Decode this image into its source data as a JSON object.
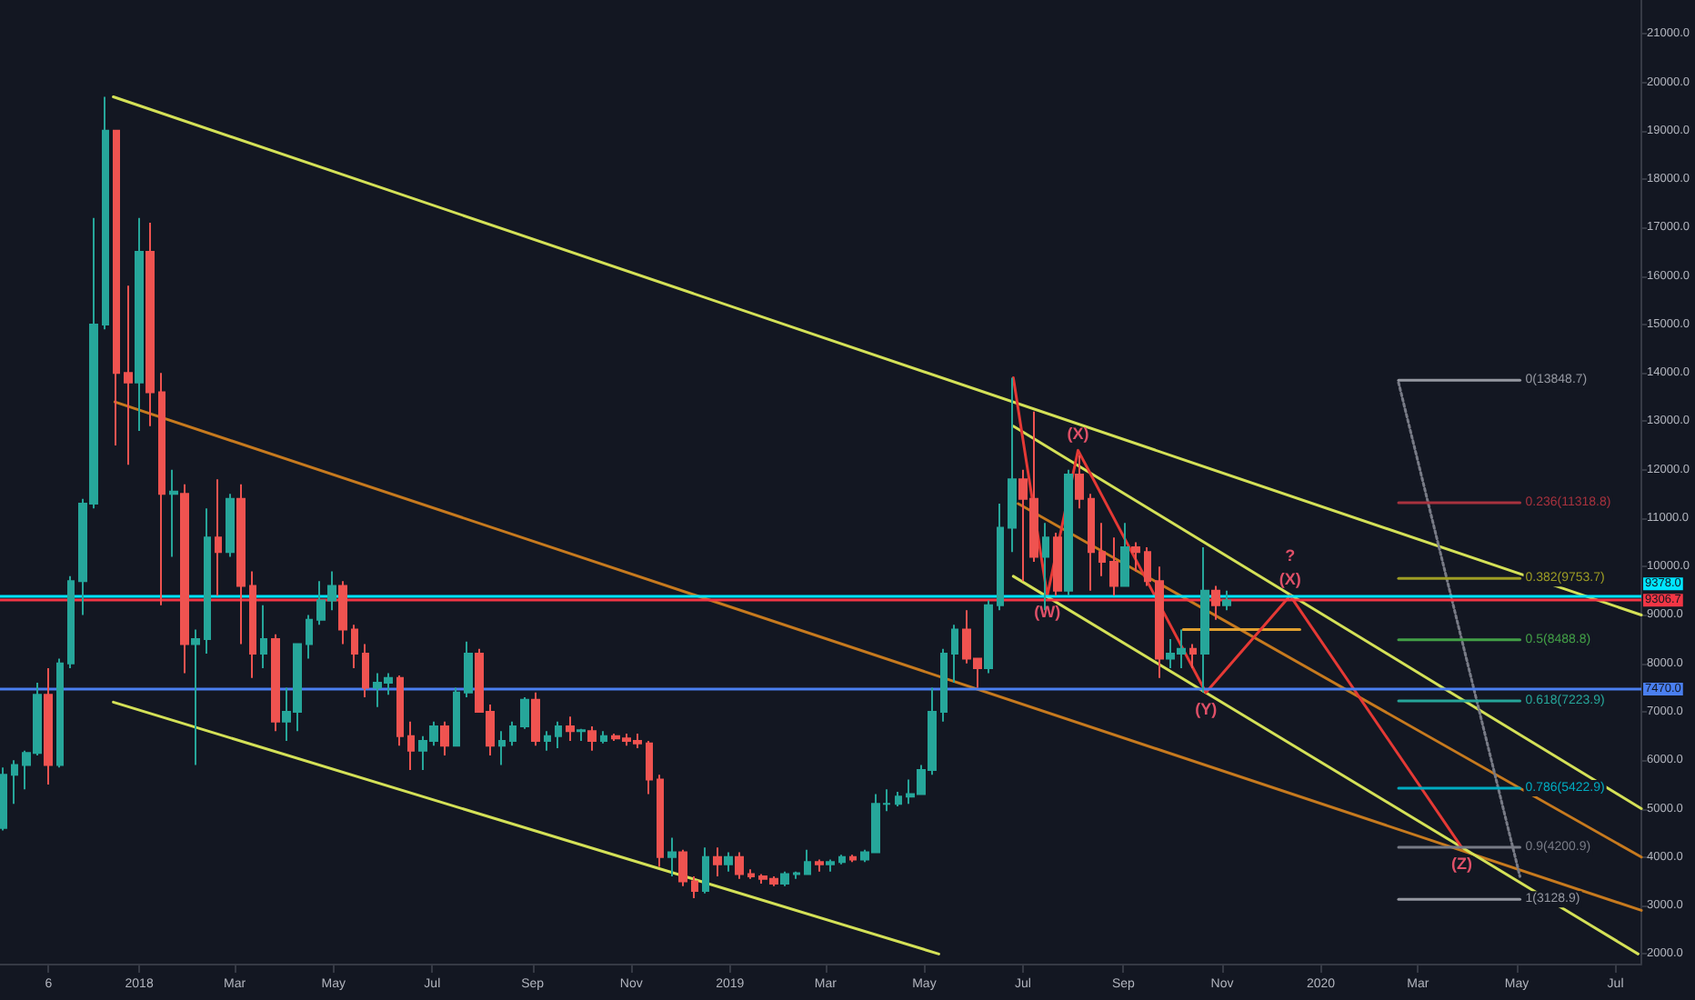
{
  "chart_data": {
    "type": "candlestick",
    "xlim": [
      "2017-10-07",
      "2020-07-17"
    ],
    "ylim": [
      1800,
      21700
    ],
    "xticks": [
      {
        "value": "2017-11-06",
        "label": "6"
      },
      {
        "value": "2018-01-01",
        "label": "2018"
      },
      {
        "value": "2018-03-01",
        "label": "Mar"
      },
      {
        "value": "2018-05-01",
        "label": "May"
      },
      {
        "value": "2018-07-01",
        "label": "Jul"
      },
      {
        "value": "2018-09-01",
        "label": "Sep"
      },
      {
        "value": "2018-11-01",
        "label": "Nov"
      },
      {
        "value": "2019-01-01",
        "label": "2019"
      },
      {
        "value": "2019-03-01",
        "label": "Mar"
      },
      {
        "value": "2019-05-01",
        "label": "May"
      },
      {
        "value": "2019-07-01",
        "label": "Jul"
      },
      {
        "value": "2019-09-01",
        "label": "Sep"
      },
      {
        "value": "2019-11-01",
        "label": "Nov"
      },
      {
        "value": "2020-01-01",
        "label": "2020"
      },
      {
        "value": "2020-03-01",
        "label": "Mar"
      },
      {
        "value": "2020-05-01",
        "label": "May"
      },
      {
        "value": "2020-07-01",
        "label": "Jul"
      }
    ],
    "yticks": [
      {
        "value": 2000,
        "label": "2000.0"
      },
      {
        "value": 3000,
        "label": "3000.0"
      },
      {
        "value": 4000,
        "label": "4000.0"
      },
      {
        "value": 5000,
        "label": "5000.0"
      },
      {
        "value": 6000,
        "label": "6000.0"
      },
      {
        "value": 7000,
        "label": "7000.0"
      },
      {
        "value": 8000,
        "label": "8000.0"
      },
      {
        "value": 9000,
        "label": "9000.0"
      },
      {
        "value": 10000,
        "label": "10000.0"
      },
      {
        "value": 11000,
        "label": "11000.0"
      },
      {
        "value": 12000,
        "label": "12000.0"
      },
      {
        "value": 13000,
        "label": "13000.0"
      },
      {
        "value": 14000,
        "label": "14000.0"
      },
      {
        "value": 15000,
        "label": "15000.0"
      },
      {
        "value": 16000,
        "label": "16000.0"
      },
      {
        "value": 17000,
        "label": "17000.0"
      },
      {
        "value": 18000,
        "label": "18000.0"
      },
      {
        "value": 19000,
        "label": "19000.0"
      },
      {
        "value": 20000,
        "label": "20000.0"
      },
      {
        "value": 21000,
        "label": "21000.0"
      }
    ],
    "grid": false,
    "legend": false,
    "marker": "none",
    "ref_lines": [
      {
        "axis": "y",
        "value": 9378,
        "label": "9378.0",
        "color": "#00e5ff"
      },
      {
        "axis": "y",
        "value": 9306.7,
        "label": "9306.7",
        "color": "#f23645"
      },
      {
        "axis": "y",
        "value": 7470,
        "label": "7470.0",
        "color": "#4a7ff0"
      }
    ],
    "annotations": [
      {
        "text": "(W)",
        "x": "2019-07-16",
        "y": 9400
      },
      {
        "text": "(X)",
        "x": "2019-08-04",
        "y": 12400
      },
      {
        "text": "(Y)",
        "x": "2019-10-22",
        "y": 7400
      },
      {
        "text": "(X)",
        "x": "2019-12-13",
        "y": 9400
      },
      {
        "text": "?",
        "x": "2019-12-13",
        "y": 9400
      },
      {
        "text": "(Z)",
        "x": "2020-03-28",
        "y": 4200
      }
    ],
    "series": [
      {
        "x": [
          "2017-10-09",
          "2017-10-16",
          "2017-10-23",
          "2017-10-30",
          "2017-11-06",
          "2017-11-13",
          "2017-11-20",
          "2017-11-27",
          "2017-12-04",
          "2017-12-11",
          "2017-12-18",
          "2017-12-25",
          "2018-01-01",
          "2018-01-08",
          "2018-01-15",
          "2018-01-22",
          "2018-01-29",
          "2018-02-05",
          "2018-02-12",
          "2018-02-19",
          "2018-02-26",
          "2018-03-05",
          "2018-03-12",
          "2018-03-19",
          "2018-03-26",
          "2018-04-02",
          "2018-04-09",
          "2018-04-16",
          "2018-04-23",
          "2018-04-30",
          "2018-05-07",
          "2018-05-14",
          "2018-05-21",
          "2018-05-28",
          "2018-06-04",
          "2018-06-11",
          "2018-06-18",
          "2018-06-25",
          "2018-07-02",
          "2018-07-09",
          "2018-07-16",
          "2018-07-23",
          "2018-07-30",
          "2018-08-06",
          "2018-08-13",
          "2018-08-20",
          "2018-08-27",
          "2018-09-03",
          "2018-09-10",
          "2018-09-17",
          "2018-09-24",
          "2018-10-01",
          "2018-10-08",
          "2018-10-15",
          "2018-10-22",
          "2018-10-29",
          "2018-11-05",
          "2018-11-12",
          "2018-11-19",
          "2018-11-26",
          "2018-12-03",
          "2018-12-10",
          "2018-12-17",
          "2018-12-24",
          "2018-12-31",
          "2019-01-07",
          "2019-01-14",
          "2019-01-21",
          "2019-01-28",
          "2019-02-04",
          "2019-02-11",
          "2019-02-18",
          "2019-02-25",
          "2019-03-04",
          "2019-03-11",
          "2019-03-18",
          "2019-03-25",
          "2019-04-01",
          "2019-04-08",
          "2019-04-15",
          "2019-04-22",
          "2019-04-29",
          "2019-05-06",
          "2019-05-13",
          "2019-05-20",
          "2019-05-27",
          "2019-06-03",
          "2019-06-10",
          "2019-06-17",
          "2019-06-24",
          "2019-07-01",
          "2019-07-08",
          "2019-07-15",
          "2019-07-22",
          "2019-07-29",
          "2019-08-05",
          "2019-08-12",
          "2019-08-19",
          "2019-08-26",
          "2019-09-02",
          "2019-09-09",
          "2019-09-16",
          "2019-09-23",
          "2019-09-30",
          "2019-10-07",
          "2019-10-14",
          "2019-10-21",
          "2019-10-28",
          "2019-11-04"
        ],
        "ohlc": [
          [
            4600,
            5850,
            4550,
            5700
          ],
          [
            5700,
            6000,
            5100,
            5900
          ],
          [
            5900,
            6200,
            5400,
            6150
          ],
          [
            6150,
            7600,
            6100,
            7350
          ],
          [
            7350,
            7900,
            5500,
            5900
          ],
          [
            5900,
            8100,
            5850,
            8000
          ],
          [
            8000,
            9800,
            7900,
            9700
          ],
          [
            9700,
            11400,
            9000,
            11300
          ],
          [
            11300,
            17200,
            11200,
            15000
          ],
          [
            15000,
            19700,
            14900,
            19000
          ],
          [
            19000,
            19000,
            12500,
            14000
          ],
          [
            14000,
            15800,
            12100,
            13800
          ],
          [
            13800,
            17200,
            12800,
            16500
          ],
          [
            16500,
            17100,
            12900,
            13600
          ],
          [
            13600,
            14000,
            9200,
            11500
          ],
          [
            11500,
            12000,
            10200,
            11550
          ],
          [
            11500,
            11700,
            7800,
            8400
          ],
          [
            8400,
            8700,
            5900,
            8500
          ],
          [
            8500,
            11200,
            8200,
            10600
          ],
          [
            10600,
            11800,
            9400,
            10300
          ],
          [
            10300,
            11500,
            10200,
            11400
          ],
          [
            11400,
            11700,
            8400,
            9600
          ],
          [
            9600,
            9900,
            7700,
            8200
          ],
          [
            8200,
            9200,
            7900,
            8500
          ],
          [
            8500,
            8600,
            6600,
            6800
          ],
          [
            6800,
            7500,
            6400,
            7000
          ],
          [
            7000,
            8400,
            6600,
            8400
          ],
          [
            8400,
            9000,
            8100,
            8900
          ],
          [
            8900,
            9700,
            8800,
            9300
          ],
          [
            9300,
            9900,
            9100,
            9600
          ],
          [
            9600,
            9700,
            8400,
            8700
          ],
          [
            8700,
            8800,
            7900,
            8200
          ],
          [
            8200,
            8400,
            7300,
            7500
          ],
          [
            7500,
            7800,
            7100,
            7600
          ],
          [
            7600,
            7800,
            7350,
            7700
          ],
          [
            7700,
            7750,
            6300,
            6500
          ],
          [
            6500,
            6800,
            5800,
            6200
          ],
          [
            6200,
            6500,
            5800,
            6400
          ],
          [
            6400,
            6800,
            6300,
            6700
          ],
          [
            6700,
            6800,
            6100,
            6300
          ],
          [
            6300,
            7500,
            6300,
            7400
          ],
          [
            7400,
            8450,
            7300,
            8200
          ],
          [
            8200,
            8300,
            7000,
            7000
          ],
          [
            7000,
            7150,
            6100,
            6300
          ],
          [
            6300,
            6600,
            5900,
            6400
          ],
          [
            6400,
            6800,
            6300,
            6700
          ],
          [
            6700,
            7300,
            6650,
            7250
          ],
          [
            7250,
            7400,
            6300,
            6400
          ],
          [
            6400,
            6600,
            6200,
            6500
          ],
          [
            6500,
            6800,
            6250,
            6700
          ],
          [
            6700,
            6900,
            6400,
            6600
          ],
          [
            6600,
            6650,
            6400,
            6620
          ],
          [
            6600,
            6700,
            6200,
            6400
          ],
          [
            6400,
            6600,
            6350,
            6500
          ],
          [
            6500,
            6550,
            6400,
            6450
          ],
          [
            6450,
            6550,
            6300,
            6400
          ],
          [
            6400,
            6550,
            6250,
            6350
          ],
          [
            6350,
            6400,
            5300,
            5600
          ],
          [
            5600,
            5700,
            3800,
            4000
          ],
          [
            4000,
            4400,
            3600,
            4100
          ],
          [
            4100,
            4150,
            3400,
            3500
          ],
          [
            3500,
            3600,
            3150,
            3300
          ],
          [
            3300,
            4200,
            3250,
            4000
          ],
          [
            4000,
            4200,
            3600,
            3850
          ],
          [
            3850,
            4100,
            3700,
            4000
          ],
          [
            4000,
            4100,
            3550,
            3650
          ],
          [
            3650,
            3750,
            3550,
            3600
          ],
          [
            3600,
            3650,
            3450,
            3550
          ],
          [
            3550,
            3600,
            3400,
            3450
          ],
          [
            3450,
            3700,
            3400,
            3650
          ],
          [
            3650,
            3700,
            3550,
            3670
          ],
          [
            3650,
            4150,
            3650,
            3900
          ],
          [
            3900,
            3950,
            3700,
            3850
          ],
          [
            3850,
            3950,
            3700,
            3900
          ],
          [
            3900,
            4050,
            3850,
            4000
          ],
          [
            4000,
            4050,
            3900,
            3950
          ],
          [
            3950,
            4150,
            3900,
            4100
          ],
          [
            4100,
            5300,
            4100,
            5100
          ],
          [
            5100,
            5400,
            4950,
            5100
          ],
          [
            5100,
            5350,
            5050,
            5250
          ],
          [
            5250,
            5600,
            5100,
            5300
          ],
          [
            5300,
            5900,
            5300,
            5800
          ],
          [
            5800,
            7500,
            5700,
            7000
          ],
          [
            7000,
            8300,
            6800,
            8200
          ],
          [
            8200,
            8800,
            7600,
            8700
          ],
          [
            8700,
            9100,
            8000,
            8100
          ],
          [
            8100,
            8100,
            7500,
            7900
          ],
          [
            7900,
            9300,
            7800,
            9200
          ],
          [
            9200,
            11300,
            9100,
            10800
          ],
          [
            10800,
            13900,
            10300,
            11800
          ],
          [
            11800,
            12000,
            9700,
            11400
          ],
          [
            11400,
            13200,
            10100,
            10200
          ],
          [
            10200,
            10900,
            9100,
            10600
          ],
          [
            10600,
            10700,
            9400,
            9500
          ],
          [
            9500,
            12000,
            9400,
            11900
          ],
          [
            11900,
            12300,
            11200,
            11400
          ],
          [
            11400,
            11500,
            9500,
            10300
          ],
          [
            10300,
            10900,
            9800,
            10100
          ],
          [
            10100,
            10600,
            9400,
            9600
          ],
          [
            9600,
            10900,
            9600,
            10400
          ],
          [
            10400,
            10500,
            9900,
            10300
          ],
          [
            10300,
            10400,
            9600,
            9700
          ],
          [
            9700,
            10000,
            7700,
            8100
          ],
          [
            8100,
            8500,
            7900,
            8200
          ],
          [
            8200,
            8700,
            7900,
            8300
          ],
          [
            8300,
            8400,
            7900,
            8200
          ],
          [
            8200,
            10400,
            7400,
            9500
          ],
          [
            9500,
            9600,
            8900,
            9200
          ],
          [
            9200,
            9500,
            9100,
            9300
          ]
        ],
        "colors": [
          "#26a69a",
          "#26a69a",
          "#26a69a",
          "#26a69a",
          "#ef5350",
          "#26a69a",
          "#26a69a",
          "#26a69a",
          "#26a69a",
          "#26a69a",
          "#ef5350",
          "#ef5350",
          "#26a69a",
          "#ef5350",
          "#ef5350",
          "#26a69a",
          "#ef5350",
          "#26a69a",
          "#26a69a",
          "#ef5350",
          "#26a69a",
          "#ef5350",
          "#ef5350",
          "#26a69a",
          "#ef5350",
          "#26a69a",
          "#26a69a",
          "#26a69a",
          "#26a69a",
          "#26a69a",
          "#ef5350",
          "#ef5350",
          "#ef5350",
          "#26a69a",
          "#26a69a",
          "#ef5350",
          "#ef5350",
          "#26a69a",
          "#26a69a",
          "#ef5350",
          "#26a69a",
          "#26a69a",
          "#ef5350",
          "#ef5350",
          "#26a69a",
          "#26a69a",
          "#26a69a",
          "#ef5350",
          "#26a69a",
          "#26a69a",
          "#ef5350",
          "#26a69a",
          "#ef5350",
          "#26a69a",
          "#ef5350",
          "#ef5350",
          "#ef5350",
          "#ef5350",
          "#ef5350",
          "#26a69a",
          "#ef5350",
          "#ef5350",
          "#26a69a",
          "#ef5350",
          "#26a69a",
          "#ef5350",
          "#ef5350",
          "#ef5350",
          "#ef5350",
          "#26a69a",
          "#26a69a",
          "#26a69a",
          "#ef5350",
          "#26a69a",
          "#26a69a",
          "#ef5350",
          "#26a69a",
          "#26a69a",
          "#26a69a",
          "#26a69a",
          "#26a69a",
          "#26a69a",
          "#26a69a",
          "#26a69a",
          "#26a69a",
          "#ef5350",
          "#ef5350",
          "#26a69a",
          "#26a69a",
          "#26a69a",
          "#ef5350",
          "#ef5350",
          "#26a69a",
          "#ef5350",
          "#26a69a",
          "#ef5350",
          "#ef5350",
          "#ef5350",
          "#ef5350",
          "#26a69a",
          "#ef5350",
          "#ef5350",
          "#ef5350",
          "#26a69a",
          "#26a69a",
          "#ef5350",
          "#26a69a",
          "#ef5350",
          "#26a69a"
        ]
      },
      {
        "type": "line",
        "x": [
          "2017-12-16",
          "2020-07-17"
        ],
        "values": [
          19700,
          9000
        ],
        "color": "#d4e157",
        "line_style": "solid"
      },
      {
        "type": "line",
        "x": [
          "2017-12-16",
          "2019-05-10"
        ],
        "values": [
          7200,
          2000
        ],
        "color": "#d4e157",
        "line_style": "solid"
      },
      {
        "type": "line",
        "x": [
          "2017-12-17",
          "2020-07-17"
        ],
        "values": [
          13400,
          2900
        ],
        "color": "#c77a1e",
        "line_style": "solid"
      },
      {
        "type": "line",
        "x": [
          "2019-06-28",
          "2020-07-17"
        ],
        "values": [
          11300,
          4000
        ],
        "color": "#c77a1e",
        "line_style": "solid"
      },
      {
        "type": "line",
        "x": [
          "2019-06-25",
          "2020-07-17"
        ],
        "values": [
          12900,
          5000
        ],
        "color": "#d4e157",
        "line_style": "solid"
      },
      {
        "type": "line",
        "x": [
          "2019-06-25",
          "2020-07-15"
        ],
        "values": [
          9800,
          2000
        ],
        "color": "#d4e157",
        "line_style": "solid"
      },
      {
        "type": "line",
        "x": [
          "2019-10-08",
          "2019-12-19"
        ],
        "values": [
          8700,
          8700
        ],
        "color": "#e0a030",
        "line_style": "solid"
      },
      {
        "type": "line",
        "x": [
          "2019-06-25",
          "2019-07-16",
          "2019-08-04",
          "2019-10-22",
          "2019-12-13",
          "2020-03-28"
        ],
        "values": [
          13900,
          9400,
          12400,
          7400,
          9400,
          4200
        ],
        "color": "#e53935",
        "line_style": "solid"
      },
      {
        "type": "line",
        "x": [
          "2020-02-18",
          "2020-05-03"
        ],
        "values": [
          13800,
          3600
        ],
        "color": "#787b86",
        "line_style": "dotted"
      },
      {
        "type": "line",
        "name": "0(13848.7)",
        "x": [
          "2020-02-18",
          "2020-05-03"
        ],
        "values": [
          13848.7,
          13848.7
        ],
        "color": "#9598a1",
        "line_style": "solid"
      },
      {
        "type": "line",
        "name": "0.236(11318.8)",
        "x": [
          "2020-02-18",
          "2020-05-03"
        ],
        "values": [
          11318.8,
          11318.8
        ],
        "color": "#a8323e",
        "line_style": "solid"
      },
      {
        "type": "line",
        "name": "0.382(9753.7)",
        "x": [
          "2020-02-18",
          "2020-05-03"
        ],
        "values": [
          9753.7,
          9753.7
        ],
        "color": "#9e9d24",
        "line_style": "solid"
      },
      {
        "type": "line",
        "name": "0.5(8488.8)",
        "x": [
          "2020-02-18",
          "2020-05-03"
        ],
        "values": [
          8488.8,
          8488.8
        ],
        "color": "#43a047",
        "line_style": "solid"
      },
      {
        "type": "line",
        "name": "0.618(7223.9)",
        "x": [
          "2020-02-18",
          "2020-05-03"
        ],
        "values": [
          7223.9,
          7223.9
        ],
        "color": "#26a69a",
        "line_style": "solid"
      },
      {
        "type": "line",
        "name": "0.786(5422.9)",
        "x": [
          "2020-02-18",
          "2020-05-03"
        ],
        "values": [
          5422.9,
          5422.9
        ],
        "color": "#00acc1",
        "line_style": "solid"
      },
      {
        "type": "line",
        "name": "0.9(4200.9)",
        "x": [
          "2020-02-18",
          "2020-05-03"
        ],
        "values": [
          4200.9,
          4200.9
        ],
        "color": "#787b86",
        "line_style": "solid"
      },
      {
        "type": "line",
        "name": "1(3128.9)",
        "x": [
          "2020-02-18",
          "2020-05-03"
        ],
        "values": [
          3128.9,
          3128.9
        ],
        "color": "#9598a1",
        "line_style": "solid"
      }
    ]
  }
}
